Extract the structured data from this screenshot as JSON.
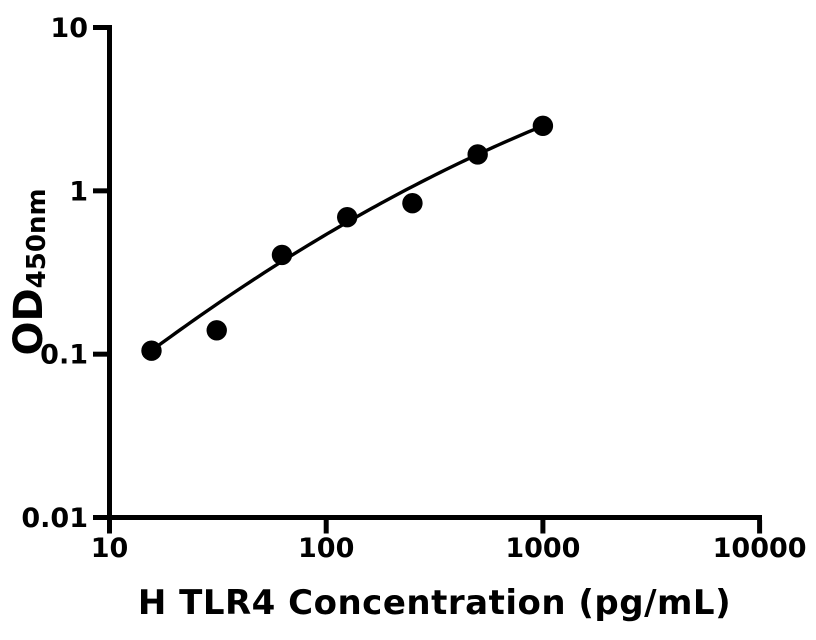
{
  "chart_data": {
    "type": "scatter",
    "subtype": "elisa-standard-curve",
    "title": "",
    "xlabel": "H TLR4 Concentration (pg/mL)",
    "ylabel_main": "OD",
    "ylabel_sub": "450nm",
    "x_scale": "log10",
    "y_scale": "log10",
    "xlim": [
      10,
      10000
    ],
    "ylim": [
      0.01,
      10
    ],
    "x_ticks": [
      10,
      100,
      1000,
      10000
    ],
    "x_tick_labels": [
      "10",
      "100",
      "1000",
      "10000"
    ],
    "y_ticks": [
      0.01,
      0.1,
      1,
      10
    ],
    "y_tick_labels": [
      "0.01",
      "0.1",
      "1",
      "10"
    ],
    "grid": false,
    "legend": null,
    "points": [
      {
        "x": 15.625,
        "y": 0.105
      },
      {
        "x": 31.25,
        "y": 0.14
      },
      {
        "x": 62.5,
        "y": 0.405
      },
      {
        "x": 125,
        "y": 0.69
      },
      {
        "x": 250,
        "y": 0.84
      },
      {
        "x": 500,
        "y": 1.67
      },
      {
        "x": 1000,
        "y": 2.5
      }
    ],
    "fit_curve": {
      "model": "quadratic_in_loglog",
      "equation": "log10(y) = a + b*log10(x) + c*log10(x)^2",
      "a": -2.3186,
      "b": 1.2664,
      "c": -0.1203,
      "domain_log10x": [
        1.1938,
        3.0
      ]
    },
    "marker_color": "#000000",
    "line_color": "#000000",
    "axis_color": "#000000",
    "background_color": "#ffffff"
  }
}
